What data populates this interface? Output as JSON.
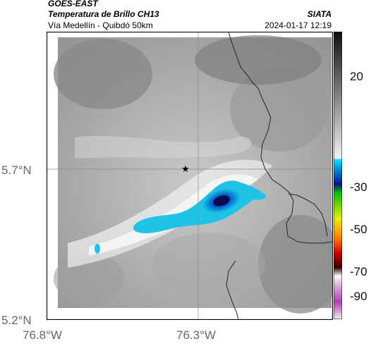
{
  "header": {
    "satellite": "GOES-EAST",
    "product": "Temperatura de Brillo CH13",
    "region": "Vía Medellín - Quibdó 50km",
    "agency": "SIATA",
    "datetime": "2024-01-17 12:19"
  },
  "map": {
    "lat_ticks": [
      "5.7°N",
      "5.2°N"
    ],
    "lon_ticks": [
      "76.8°W",
      "76.3°W"
    ],
    "marker": "star-icon",
    "grid": true,
    "colors": {
      "frame": "#000000",
      "gridline": "#888888",
      "border": "#222222"
    }
  },
  "colorbar": {
    "ticks": [
      "20",
      "-30",
      "-50",
      "-70",
      "-90"
    ]
  }
}
